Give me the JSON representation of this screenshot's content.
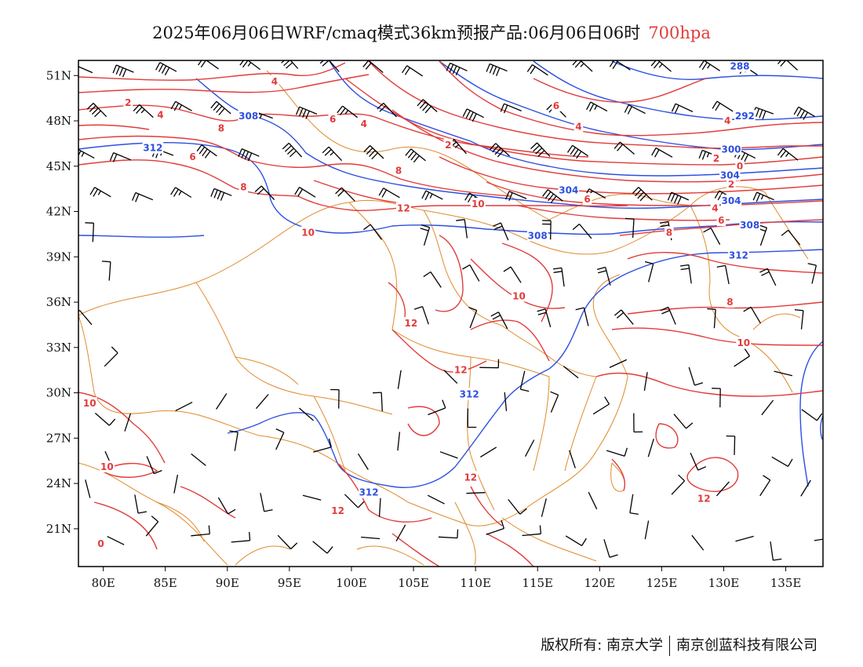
{
  "title": {
    "text": "2025年06月06日WRF/cmaq模式36km预报产品:06月06日06时",
    "level": "700hpa"
  },
  "axes": {
    "lon_min": 78,
    "lon_max": 138,
    "lat_min": 18.5,
    "lat_max": 52,
    "x_ticks": [
      "80E",
      "85E",
      "90E",
      "95E",
      "100E",
      "105E",
      "110E",
      "115E",
      "120E",
      "125E",
      "130E",
      "135E"
    ],
    "x_tick_values": [
      80,
      85,
      90,
      95,
      100,
      105,
      110,
      115,
      120,
      125,
      130,
      135
    ],
    "y_ticks": [
      "21N",
      "24N",
      "27N",
      "30N",
      "33N",
      "36N",
      "39N",
      "42N",
      "45N",
      "48N",
      "51N"
    ],
    "y_tick_values": [
      21,
      24,
      27,
      30,
      33,
      36,
      39,
      42,
      45,
      48,
      51
    ]
  },
  "colors": {
    "temperature": "#e23b3b",
    "height": "#2c4fe0",
    "border": "#e08a2c",
    "wind": "#000000"
  },
  "temperature_labels": [
    {
      "text": "4",
      "lon": 93.8,
      "lat": 50.6
    },
    {
      "text": "2",
      "lon": 82.0,
      "lat": 49.2
    },
    {
      "text": "4",
      "lon": 84.6,
      "lat": 48.4
    },
    {
      "text": "8",
      "lon": 89.5,
      "lat": 47.5
    },
    {
      "text": "6",
      "lon": 98.5,
      "lat": 48.1
    },
    {
      "text": "4",
      "lon": 101.0,
      "lat": 47.8
    },
    {
      "text": "6",
      "lon": 87.2,
      "lat": 45.6
    },
    {
      "text": "8",
      "lon": 91.3,
      "lat": 43.6
    },
    {
      "text": "8",
      "lon": 103.8,
      "lat": 44.7
    },
    {
      "text": "2",
      "lon": 107.8,
      "lat": 46.4
    },
    {
      "text": "12",
      "lon": 104.2,
      "lat": 42.2
    },
    {
      "text": "10",
      "lon": 96.5,
      "lat": 40.6
    },
    {
      "text": "10",
      "lon": 110.2,
      "lat": 42.5
    },
    {
      "text": "6",
      "lon": 116.5,
      "lat": 49.0
    },
    {
      "text": "4",
      "lon": 118.3,
      "lat": 47.6
    },
    {
      "text": "6",
      "lon": 119.0,
      "lat": 42.8
    },
    {
      "text": "8",
      "lon": 125.6,
      "lat": 40.6
    },
    {
      "text": "4",
      "lon": 130.3,
      "lat": 48.0
    },
    {
      "text": "2",
      "lon": 129.4,
      "lat": 45.5
    },
    {
      "text": "0",
      "lon": 131.3,
      "lat": 45.0
    },
    {
      "text": "2",
      "lon": 130.6,
      "lat": 43.8
    },
    {
      "text": "4",
      "lon": 129.3,
      "lat": 42.2
    },
    {
      "text": "6",
      "lon": 129.8,
      "lat": 41.4
    },
    {
      "text": "10",
      "lon": 113.5,
      "lat": 36.4
    },
    {
      "text": "12",
      "lon": 104.8,
      "lat": 34.6
    },
    {
      "text": "12",
      "lon": 108.8,
      "lat": 31.5
    },
    {
      "text": "8",
      "lon": 130.5,
      "lat": 36.0
    },
    {
      "text": "10",
      "lon": 131.6,
      "lat": 33.3
    },
    {
      "text": "10",
      "lon": 78.9,
      "lat": 29.3
    },
    {
      "text": "10",
      "lon": 80.3,
      "lat": 25.1
    },
    {
      "text": "12",
      "lon": 109.6,
      "lat": 24.4
    },
    {
      "text": "12",
      "lon": 98.9,
      "lat": 22.2
    },
    {
      "text": "12",
      "lon": 128.4,
      "lat": 23.0
    },
    {
      "text": "0",
      "lon": 79.8,
      "lat": 20.0
    }
  ],
  "height_labels": [
    {
      "text": "288",
      "lon": 131.3,
      "lat": 51.6
    },
    {
      "text": "308",
      "lon": 91.7,
      "lat": 48.3
    },
    {
      "text": "312",
      "lon": 84.0,
      "lat": 46.2
    },
    {
      "text": "304",
      "lon": 117.5,
      "lat": 43.4
    },
    {
      "text": "300",
      "lon": 130.6,
      "lat": 46.1
    },
    {
      "text": "304",
      "lon": 130.5,
      "lat": 44.4
    },
    {
      "text": "304",
      "lon": 130.6,
      "lat": 42.7
    },
    {
      "text": "292",
      "lon": 131.7,
      "lat": 48.3
    },
    {
      "text": "308",
      "lon": 132.1,
      "lat": 41.1
    },
    {
      "text": "308",
      "lon": 115.0,
      "lat": 40.4
    },
    {
      "text": "312",
      "lon": 131.2,
      "lat": 39.1
    },
    {
      "text": "312",
      "lon": 109.5,
      "lat": 29.9
    },
    {
      "text": "312",
      "lon": 101.4,
      "lat": 23.4
    }
  ],
  "footer": {
    "copyright": "版权所有: 南京大学",
    "company": "南京创蓝科技有限公司"
  }
}
